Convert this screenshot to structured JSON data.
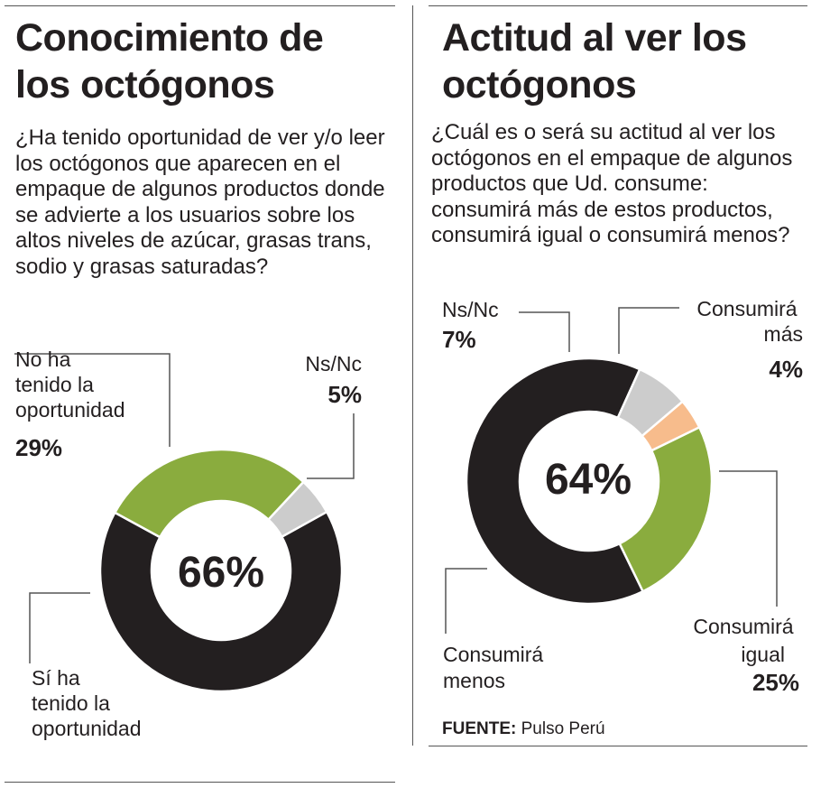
{
  "charts": {
    "left": {
      "title_line1": "Conocimiento de",
      "title_line2": "los octógonos",
      "question": "¿Ha tenido oportunidad de ver y/o leer los octógonos que aparecen en el empaque de algunos productos donde se advierte a los usuarios sobre los altos niveles de azúcar, grasas trans, sodio y grasas saturadas?",
      "center_label": "66%"
    },
    "right": {
      "title_line1": "Actitud al ver los",
      "title_line2": "octógonos",
      "question": "¿Cuál es o será su actitud al ver los octógonos en el empaque de algunos productos que Ud. consume: consumirá más de estos productos, consumirá igual o consumirá menos?",
      "center_label": "64%"
    }
  },
  "source": {
    "label": "FUENTE:",
    "text": "Pulso Perú"
  },
  "colors": {
    "dark": "#231f20",
    "green": "#8aac3e",
    "gray": "#cccccc",
    "orange": "#f7bc8c"
  },
  "chart_data": [
    {
      "type": "pie",
      "title": "Conocimiento de los octógonos",
      "donut": true,
      "slices": [
        {
          "name": "Sí ha tenido la oportunidad",
          "value": 66,
          "label_lines": [
            "Sí ha",
            "tenido la",
            "oportunidad"
          ],
          "pct_label": "",
          "color": "#231f20"
        },
        {
          "name": "No ha tenido la oportunidad",
          "value": 29,
          "label_lines": [
            "No ha",
            "tenido la",
            "oportunidad"
          ],
          "pct_label": "29%",
          "color": "#8aac3e"
        },
        {
          "name": "Ns/Nc",
          "value": 5,
          "label_lines": [
            "Ns/Nc"
          ],
          "pct_label": "5%",
          "color": "#cccccc"
        }
      ]
    },
    {
      "type": "pie",
      "title": "Actitud al ver los octógonos",
      "donut": true,
      "slices": [
        {
          "name": "Consumirá menos",
          "value": 64,
          "label_lines": [
            "Consumirá",
            "menos"
          ],
          "pct_label": "",
          "color": "#231f20"
        },
        {
          "name": "Ns/Nc",
          "value": 7,
          "label_lines": [
            "Ns/Nc"
          ],
          "pct_label": "7%",
          "color": "#cccccc"
        },
        {
          "name": "Consumirá más",
          "value": 4,
          "label_lines": [
            "Consumirá",
            "más"
          ],
          "pct_label": "4%",
          "color": "#f7bc8c"
        },
        {
          "name": "Consumirá igual",
          "value": 25,
          "label_lines": [
            "Consumirá",
            "igual"
          ],
          "pct_label": "25%",
          "color": "#8aac3e"
        }
      ]
    }
  ]
}
